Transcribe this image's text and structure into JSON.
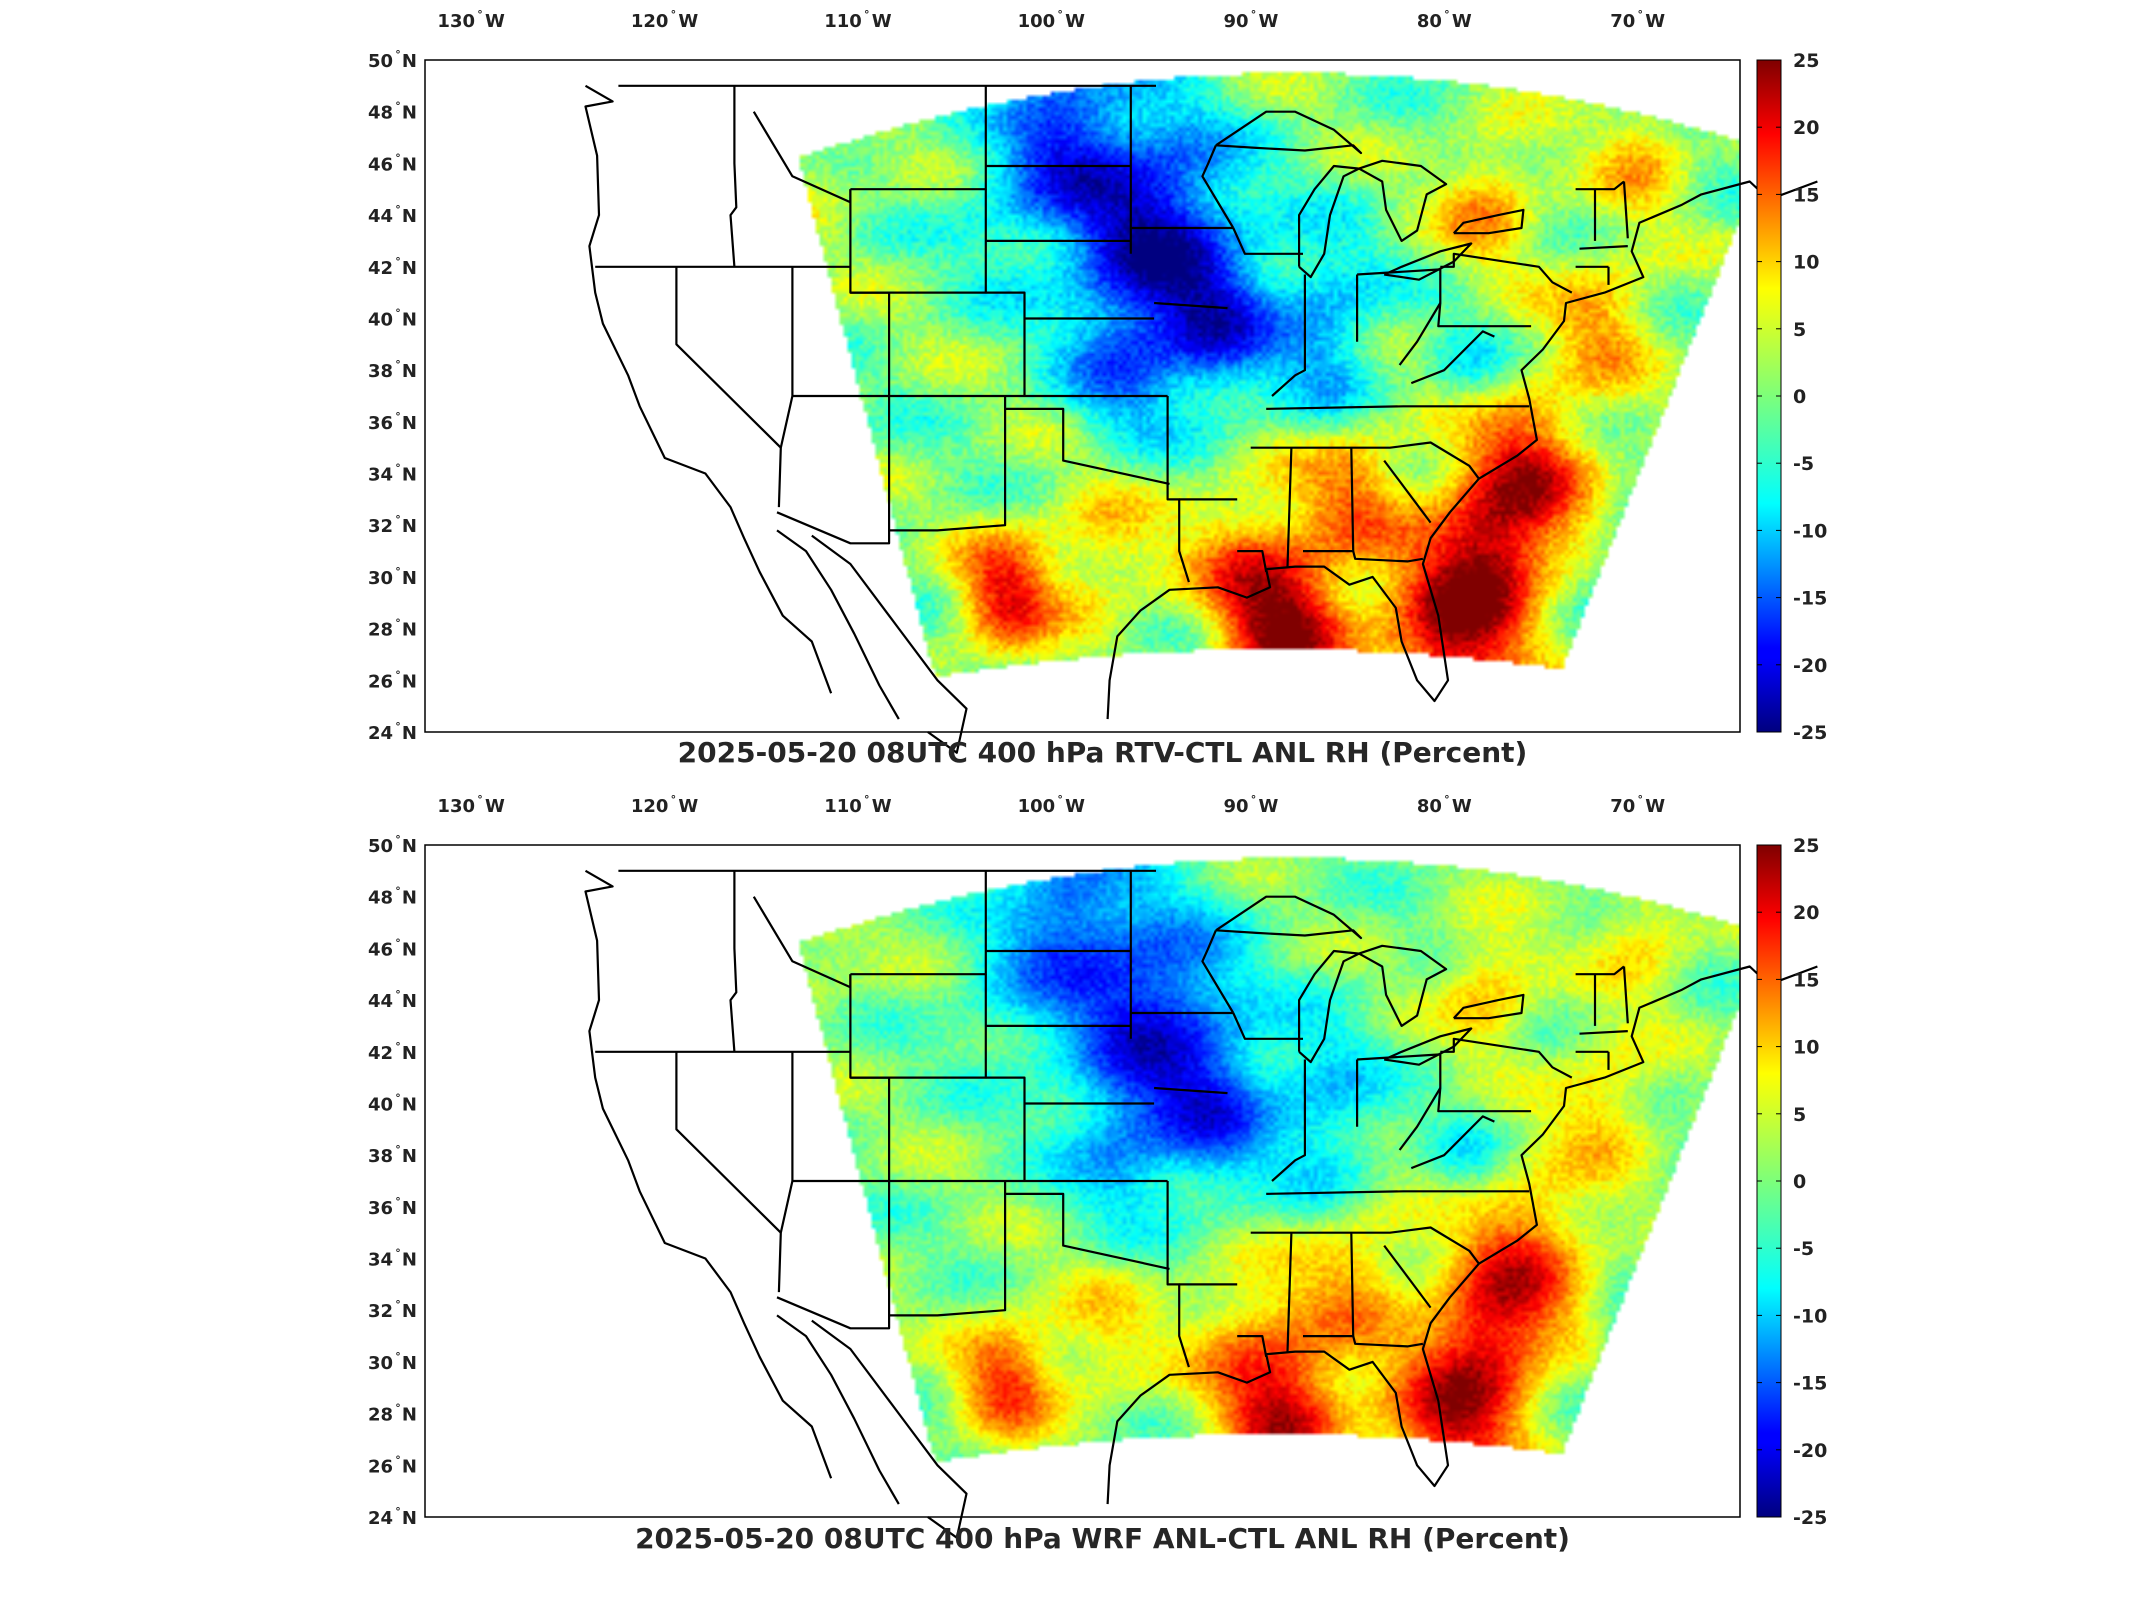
{
  "panels": [
    {
      "id": "rtv",
      "title": "2025-05-20 08UTC 400 hPa RTV-CTL ANL RH (Percent)",
      "variant": 0
    },
    {
      "id": "wrf",
      "title": "2025-05-20 08UTC 400 hPa WRF ANL-CTL ANL RH (Percent)",
      "variant": 1
    }
  ],
  "lon_ticks": [
    {
      "value": -130,
      "num": "130",
      "hem": "W"
    },
    {
      "value": -120,
      "num": "120",
      "hem": "W"
    },
    {
      "value": -110,
      "num": "110",
      "hem": "W"
    },
    {
      "value": -100,
      "num": "100",
      "hem": "W"
    },
    {
      "value": -90,
      "num": "90",
      "hem": "W"
    },
    {
      "value": -80,
      "num": "80",
      "hem": "W"
    },
    {
      "value": -70,
      "num": "70",
      "hem": "W"
    }
  ],
  "lat_ticks": [
    {
      "value": 50,
      "num": "50",
      "hem": "N"
    },
    {
      "value": 48,
      "num": "48",
      "hem": "N"
    },
    {
      "value": 46,
      "num": "46",
      "hem": "N"
    },
    {
      "value": 44,
      "num": "44",
      "hem": "N"
    },
    {
      "value": 42,
      "num": "42",
      "hem": "N"
    },
    {
      "value": 40,
      "num": "40",
      "hem": "N"
    },
    {
      "value": 38,
      "num": "38",
      "hem": "N"
    },
    {
      "value": 36,
      "num": "36",
      "hem": "N"
    },
    {
      "value": 34,
      "num": "34",
      "hem": "N"
    },
    {
      "value": 32,
      "num": "32",
      "hem": "N"
    },
    {
      "value": 30,
      "num": "30",
      "hem": "N"
    },
    {
      "value": 28,
      "num": "28",
      "hem": "N"
    },
    {
      "value": 26,
      "num": "26",
      "hem": "N"
    },
    {
      "value": 24,
      "num": "24",
      "hem": "N"
    }
  ],
  "colorbar": {
    "min": -25,
    "max": 25,
    "ticks": [
      "25",
      "20",
      "15",
      "10",
      "5",
      "0",
      "-5",
      "-10",
      "-15",
      "-20",
      "-25"
    ],
    "colormap": "jet"
  },
  "map_extent": {
    "lon_min": -133,
    "lon_max": -65,
    "lat_min": 24,
    "lat_max": 50
  },
  "colors": {
    "coast": "#000000",
    "frame": "#000000",
    "missing": "#ffffff"
  }
}
